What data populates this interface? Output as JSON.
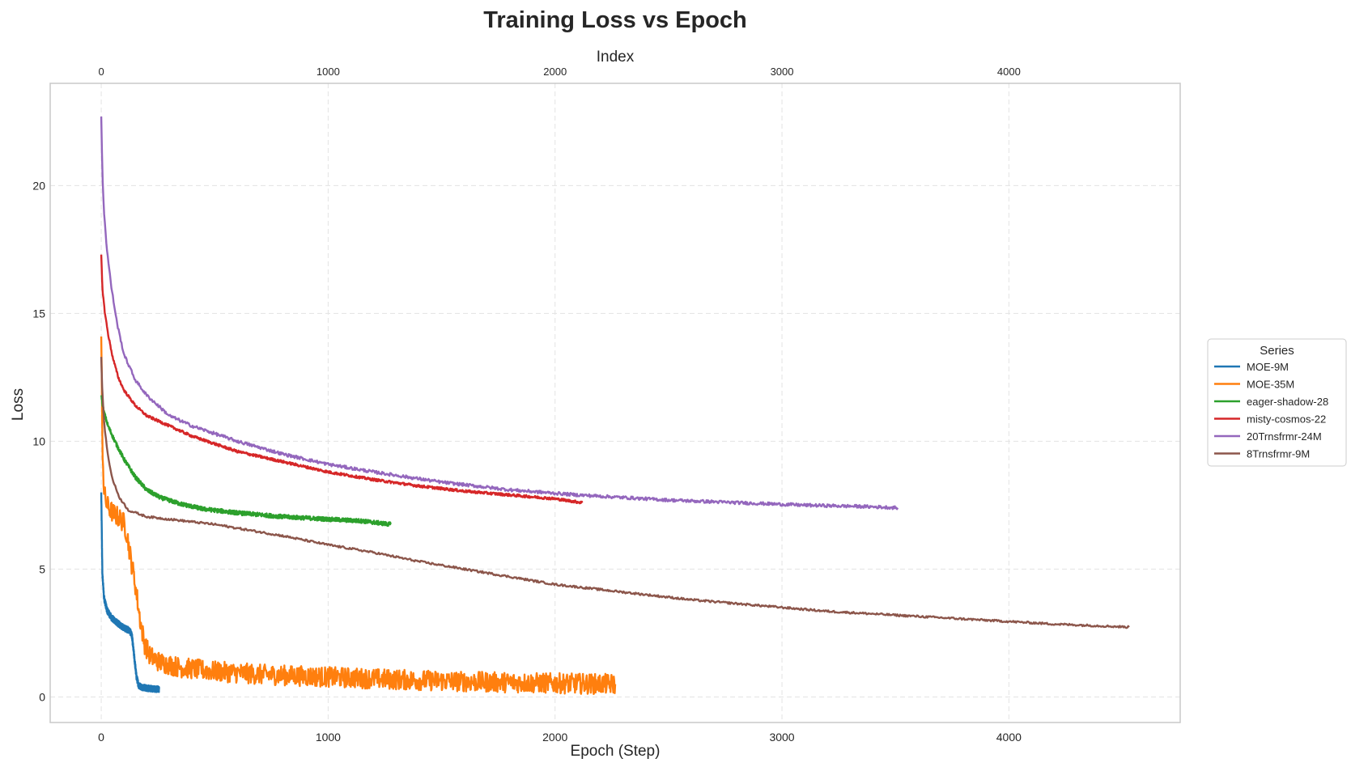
{
  "chart_data": {
    "type": "line",
    "title": "Training Loss vs Epoch",
    "xlabel": "Epoch (Step)",
    "ylabel": "Loss",
    "x2label": "Index",
    "xlim": [
      -225,
      4755
    ],
    "ylim": [
      -1.0,
      24.0
    ],
    "xticks": [
      0,
      1000,
      2000,
      3000,
      4000
    ],
    "x2ticks": [
      0,
      1000,
      2000,
      3000,
      4000
    ],
    "yticks": [
      0,
      5,
      10,
      15,
      20
    ],
    "grid": true,
    "legend": {
      "title": "Series",
      "position": "right-center"
    },
    "series": [
      {
        "name": "MOE-9M",
        "color": "#1f77b4",
        "noise": 0.12,
        "points": [
          [
            0,
            8.0
          ],
          [
            5,
            4.8
          ],
          [
            12,
            3.9
          ],
          [
            25,
            3.4
          ],
          [
            45,
            3.1
          ],
          [
            70,
            2.9
          ],
          [
            100,
            2.7
          ],
          [
            125,
            2.6
          ],
          [
            135,
            2.4
          ],
          [
            145,
            1.6
          ],
          [
            155,
            0.8
          ],
          [
            165,
            0.45
          ],
          [
            180,
            0.38
          ],
          [
            210,
            0.33
          ],
          [
            255,
            0.3
          ]
        ]
      },
      {
        "name": "MOE-35M",
        "color": "#ff7f0e",
        "noise": 0.4,
        "points": [
          [
            0,
            14.1
          ],
          [
            5,
            10.0
          ],
          [
            12,
            8.0
          ],
          [
            25,
            7.5
          ],
          [
            50,
            7.2
          ],
          [
            80,
            7.0
          ],
          [
            100,
            6.8
          ],
          [
            115,
            6.3
          ],
          [
            130,
            5.4
          ],
          [
            150,
            4.4
          ],
          [
            170,
            3.1
          ],
          [
            190,
            2.1
          ],
          [
            215,
            1.6
          ],
          [
            260,
            1.35
          ],
          [
            350,
            1.15
          ],
          [
            500,
            1.0
          ],
          [
            700,
            0.88
          ],
          [
            1000,
            0.78
          ],
          [
            1300,
            0.68
          ],
          [
            1600,
            0.6
          ],
          [
            1900,
            0.55
          ],
          [
            2100,
            0.52
          ],
          [
            2265,
            0.5
          ]
        ]
      },
      {
        "name": "eager-shadow-28",
        "color": "#2ca02c",
        "noise": 0.08,
        "points": [
          [
            0,
            11.8
          ],
          [
            10,
            11.2
          ],
          [
            30,
            10.6
          ],
          [
            60,
            10.0
          ],
          [
            100,
            9.3
          ],
          [
            150,
            8.6
          ],
          [
            200,
            8.1
          ],
          [
            260,
            7.8
          ],
          [
            350,
            7.55
          ],
          [
            450,
            7.35
          ],
          [
            600,
            7.2
          ],
          [
            800,
            7.05
          ],
          [
            1000,
            6.95
          ],
          [
            1150,
            6.88
          ],
          [
            1275,
            6.75
          ]
        ]
      },
      {
        "name": "misty-cosmos-22",
        "color": "#d62728",
        "noise": 0.05,
        "points": [
          [
            0,
            17.3
          ],
          [
            5,
            16.0
          ],
          [
            15,
            15.1
          ],
          [
            30,
            14.2
          ],
          [
            50,
            13.3
          ],
          [
            75,
            12.5
          ],
          [
            100,
            12.0
          ],
          [
            150,
            11.4
          ],
          [
            200,
            11.0
          ],
          [
            300,
            10.6
          ],
          [
            400,
            10.2
          ],
          [
            500,
            9.9
          ],
          [
            600,
            9.6
          ],
          [
            800,
            9.2
          ],
          [
            1000,
            8.8
          ],
          [
            1200,
            8.5
          ],
          [
            1400,
            8.25
          ],
          [
            1600,
            8.05
          ],
          [
            1800,
            7.9
          ],
          [
            2000,
            7.75
          ],
          [
            2120,
            7.6
          ]
        ]
      },
      {
        "name": "20Trnsfrmr-24M",
        "color": "#9467bd",
        "noise": 0.06,
        "points": [
          [
            0,
            22.7
          ],
          [
            5,
            20.5
          ],
          [
            12,
            19.0
          ],
          [
            25,
            17.5
          ],
          [
            45,
            16.0
          ],
          [
            70,
            14.6
          ],
          [
            100,
            13.4
          ],
          [
            150,
            12.4
          ],
          [
            200,
            11.8
          ],
          [
            300,
            11.0
          ],
          [
            400,
            10.6
          ],
          [
            500,
            10.3
          ],
          [
            600,
            10.0
          ],
          [
            800,
            9.5
          ],
          [
            1000,
            9.1
          ],
          [
            1200,
            8.8
          ],
          [
            1500,
            8.4
          ],
          [
            1800,
            8.1
          ],
          [
            2100,
            7.9
          ],
          [
            2500,
            7.7
          ],
          [
            2800,
            7.6
          ],
          [
            3100,
            7.5
          ],
          [
            3350,
            7.45
          ],
          [
            3510,
            7.4
          ]
        ]
      },
      {
        "name": "8Trnsfrmr-9M",
        "color": "#8c564b",
        "noise": 0.04,
        "points": [
          [
            0,
            13.3
          ],
          [
            5,
            11.8
          ],
          [
            15,
            10.5
          ],
          [
            30,
            9.4
          ],
          [
            50,
            8.5
          ],
          [
            80,
            7.8
          ],
          [
            120,
            7.3
          ],
          [
            200,
            7.05
          ],
          [
            300,
            6.95
          ],
          [
            400,
            6.85
          ],
          [
            500,
            6.75
          ],
          [
            600,
            6.6
          ],
          [
            800,
            6.3
          ],
          [
            1000,
            5.95
          ],
          [
            1200,
            5.65
          ],
          [
            1400,
            5.3
          ],
          [
            1600,
            5.0
          ],
          [
            1800,
            4.7
          ],
          [
            2000,
            4.4
          ],
          [
            2200,
            4.2
          ],
          [
            2400,
            4.0
          ],
          [
            2600,
            3.8
          ],
          [
            2800,
            3.65
          ],
          [
            3000,
            3.5
          ],
          [
            3200,
            3.35
          ],
          [
            3400,
            3.25
          ],
          [
            3600,
            3.15
          ],
          [
            3800,
            3.05
          ],
          [
            4000,
            2.95
          ],
          [
            4200,
            2.85
          ],
          [
            4400,
            2.78
          ],
          [
            4530,
            2.73
          ]
        ]
      }
    ]
  }
}
